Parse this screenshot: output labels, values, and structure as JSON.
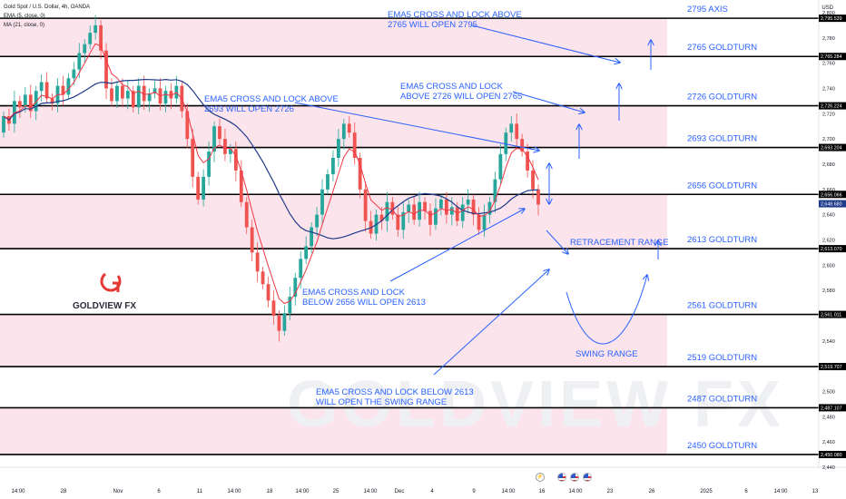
{
  "header": {
    "symbol_line": "Gold Spot / U.S. Dollar, 4h, OANDA",
    "ema_line": "EMA (5, close, 0)",
    "ma_line": "MA (21, close, 0)",
    "currency": "USD"
  },
  "logo": {
    "brand": "GOLDVIEW FX",
    "watermark": "GOLDVIEW FX"
  },
  "colors": {
    "zone_fill": "#fce4ec",
    "level_line": "#000000",
    "candle_up": "#26a69a",
    "candle_down": "#ef5350",
    "ema": "#f23645",
    "ma": "#1e3a8a",
    "annotation": "#2962ff",
    "logo_red": "#e53935"
  },
  "chart_data": {
    "type": "candlestick",
    "instrument": "Gold Spot / U.S. Dollar",
    "timeframe": "4h",
    "ylim": [
      2440,
      2810
    ],
    "y_ticks": [
      2440,
      2460,
      2480,
      2500,
      2520,
      2540,
      2560,
      2580,
      2600,
      2620,
      2640,
      2660,
      2680,
      2700,
      2720,
      2740,
      2760,
      2780,
      2800
    ],
    "x_ticks": [
      "14:00",
      "28",
      "Nov",
      "6",
      "11",
      "14:00",
      "18",
      "14:00",
      "25",
      "14:00",
      "Dec",
      "4",
      "9",
      "14:00",
      "16",
      "14:00",
      "23",
      "26",
      "2025",
      "6",
      "14:00",
      "13"
    ],
    "price_labels": [
      "2,795.539",
      "2,765.284",
      "2,726.224",
      "2,693.204",
      "2,656.066",
      "2,648.680",
      "2,613.070",
      "2,561.011",
      "2,519.707",
      "2,487.107",
      "2,450.080"
    ],
    "levels": [
      {
        "price": 2795.539,
        "label": "2795 AXIS"
      },
      {
        "price": 2765.284,
        "label": "2765 GOLDTURN"
      },
      {
        "price": 2726.224,
        "label": "2726 GOLDTURN"
      },
      {
        "price": 2693.204,
        "label": "2693 GOLDTURN"
      },
      {
        "price": 2656.066,
        "label": "2656 GOLDTURN"
      },
      {
        "price": 2613.07,
        "label": "2613 GOLDTURN"
      },
      {
        "price": 2561.011,
        "label": "2561 GOLDTURN"
      },
      {
        "price": 2519.707,
        "label": "2519 GOLDTURN"
      },
      {
        "price": 2487.107,
        "label": "2487 GOLDTURN"
      },
      {
        "price": 2450.08,
        "label": "2450 GOLDTURN"
      }
    ],
    "zones": [
      [
        2765.284,
        2795.539
      ],
      [
        2693.204,
        2726.224
      ],
      [
        2613.07,
        2656.066
      ],
      [
        2519.707,
        2561.011
      ],
      [
        2450.08,
        2487.107
      ]
    ],
    "current_price": 2648.68,
    "closes": [
      2718,
      2712,
      2730,
      2725,
      2735,
      2722,
      2738,
      2745,
      2732,
      2728,
      2742,
      2735,
      2748,
      2755,
      2768,
      2775,
      2784,
      2790,
      2770,
      2740,
      2730,
      2742,
      2732,
      2738,
      2725,
      2742,
      2730,
      2736,
      2740,
      2728,
      2738,
      2732,
      2742,
      2722,
      2700,
      2670,
      2652,
      2670,
      2690,
      2710,
      2700,
      2688,
      2692,
      2675,
      2650,
      2630,
      2610,
      2595,
      2585,
      2572,
      2560,
      2548,
      2562,
      2575,
      2590,
      2605,
      2615,
      2630,
      2640,
      2660,
      2672,
      2685,
      2700,
      2712,
      2705,
      2685,
      2660,
      2635,
      2625,
      2640,
      2635,
      2650,
      2640,
      2628,
      2642,
      2648,
      2636,
      2650,
      2643,
      2632,
      2645,
      2652,
      2640,
      2646,
      2635,
      2648,
      2652,
      2640,
      2628,
      2640,
      2650,
      2668,
      2688,
      2705,
      2712,
      2700,
      2690,
      2675,
      2660,
      2648
    ],
    "annotations": [
      {
        "line1": "EMA5 CROSS AND LOCK ABOVE",
        "line2": "2765 WILL OPEN 2795"
      },
      {
        "line1": "EMA5 CROSS AND LOCK",
        "line2": "ABOVE 2726 WILL OPEN 2765"
      },
      {
        "line1": "EMA5 CROSS AND LOCK ABOVE",
        "line2": "2693 WILL OPEN 2726"
      },
      {
        "line1": "EMA5 CROSS AND LOCK",
        "line2": "BELOW 2656 WILL OPEN 2613"
      },
      {
        "line1": "EMA5 CROSS AND LOCK BELOW 2613",
        "line2": "WILL OPEN THE SWING RANGE"
      }
    ],
    "range_labels": [
      "RETRACEMENT RANGE",
      "SWING RANGE"
    ]
  }
}
